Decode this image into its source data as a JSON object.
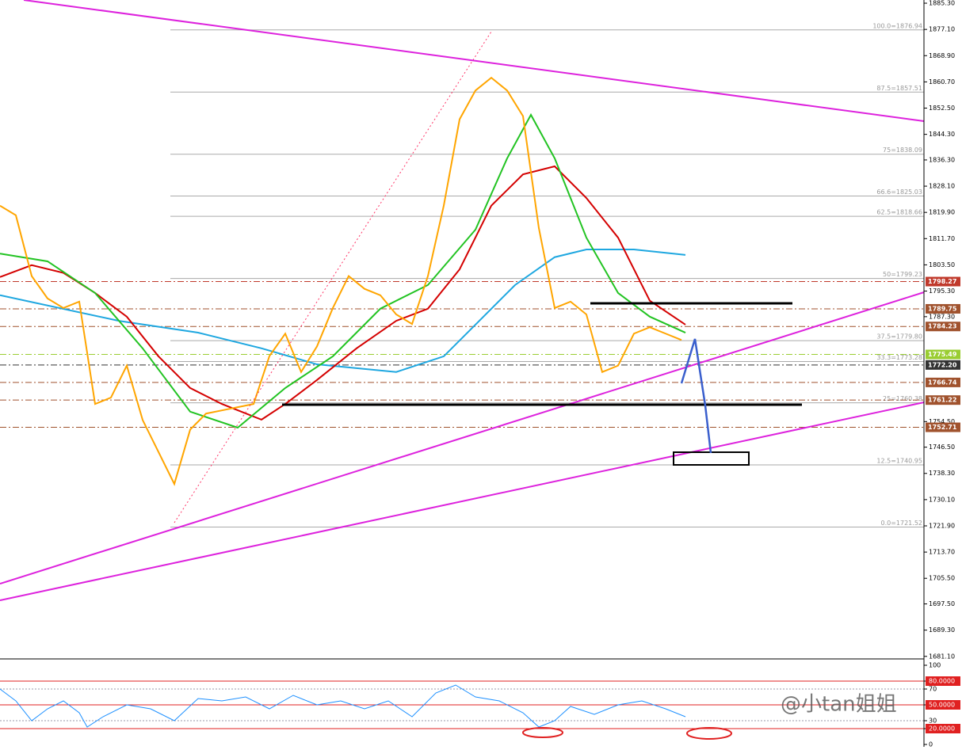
{
  "chart_data": [
    {
      "type": "line",
      "xlim": [
        0,
        1166
      ],
      "ylim": [
        1680.3,
        1886.3
      ],
      "yticks": [
        {
          "value": 1885.3,
          "label": "1885.30"
        },
        {
          "value": 1877.1,
          "label": "1877.10"
        },
        {
          "value": 1868.9,
          "label": "1868.90"
        },
        {
          "value": 1860.7,
          "label": "1860.70"
        },
        {
          "value": 1852.5,
          "label": "1852.50"
        },
        {
          "value": 1844.3,
          "label": "1844.30"
        },
        {
          "value": 1836.3,
          "label": "1836.30"
        },
        {
          "value": 1828.1,
          "label": "1828.10"
        },
        {
          "value": 1819.9,
          "label": "1819.90"
        },
        {
          "value": 1811.7,
          "label": "1811.70"
        },
        {
          "value": 1803.5,
          "label": "1803.50"
        },
        {
          "value": 1795.3,
          "label": "1795.30"
        },
        {
          "value": 1787.3,
          "label": "1787.30"
        },
        {
          "value": 1754.5,
          "label": "1754.50"
        },
        {
          "value": 1746.5,
          "label": "1746.50"
        },
        {
          "value": 1738.3,
          "label": "1738.30"
        },
        {
          "value": 1730.1,
          "label": "1730.10"
        },
        {
          "value": 1721.9,
          "label": "1721.90"
        },
        {
          "value": 1713.7,
          "label": "1713.70"
        },
        {
          "value": 1705.5,
          "label": "1705.50"
        },
        {
          "value": 1697.5,
          "label": "1697.50"
        },
        {
          "value": 1689.3,
          "label": "1689.30"
        },
        {
          "value": 1681.1,
          "label": "1681.10"
        }
      ],
      "fib_levels": [
        {
          "value": 1876.94,
          "label": "100.0=1876.94"
        },
        {
          "value": 1857.51,
          "label": "87.5=1857.51"
        },
        {
          "value": 1838.09,
          "label": "75=1838.09"
        },
        {
          "value": 1825.03,
          "label": "66.6=1825.03"
        },
        {
          "value": 1818.66,
          "label": "62.5=1818.66"
        },
        {
          "value": 1799.23,
          "label": "50=1799.23"
        },
        {
          "value": 1779.8,
          "label": "37.5=1779.80"
        },
        {
          "value": 1773.28,
          "label": "33.3=1773.28"
        },
        {
          "value": 1760.38,
          "label": "25=1760.38"
        },
        {
          "value": 1740.95,
          "label": "12.5=1740.95"
        },
        {
          "value": 1721.52,
          "label": "0.0=1721.52"
        }
      ],
      "price_tags": [
        {
          "value": 1798.27,
          "label": "1798.27",
          "color": "#c0392b"
        },
        {
          "value": 1789.75,
          "label": "1789.75",
          "color": "#a0522d"
        },
        {
          "value": 1784.23,
          "label": "1784.23",
          "color": "#a0522d"
        },
        {
          "value": 1775.49,
          "label": "1775.49",
          "color": "#9acd32"
        },
        {
          "value": 1772.2,
          "label": "1772.20",
          "color": "#333333"
        },
        {
          "value": 1766.74,
          "label": "1766.74",
          "color": "#a0522d"
        },
        {
          "value": 1761.22,
          "label": "1761.22",
          "color": "#a0522d"
        },
        {
          "value": 1752.71,
          "label": "1752.71",
          "color": "#a0522d"
        }
      ],
      "series": [
        {
          "color": "#1ea7e0",
          "x": [
            0,
            150,
            250,
            330,
            400,
            500,
            560,
            600,
            650,
            700,
            740,
            800,
            865
          ],
          "values": [
            1794,
            1786,
            1782.3,
            1777.4,
            1772.4,
            1770,
            1774.9,
            1784.8,
            1797.2,
            1805.9,
            1808.3,
            1808.3,
            1806.6
          ]
        },
        {
          "color": "#d40000",
          "x": [
            0,
            40,
            80,
            120,
            160,
            200,
            240,
            280,
            330,
            360,
            400,
            450,
            500,
            540,
            580,
            620,
            660,
            700,
            740,
            780,
            820,
            865
          ],
          "values": [
            1799.7,
            1803.4,
            1801,
            1794.7,
            1787.3,
            1774.9,
            1765,
            1760,
            1755.1,
            1760,
            1767.5,
            1777.4,
            1786,
            1789.8,
            1802.1,
            1822,
            1831.8,
            1834.3,
            1824.4,
            1812,
            1792.3,
            1784.8
          ]
        },
        {
          "color": "#22c322",
          "x": [
            0,
            60,
            120,
            180,
            240,
            300,
            360,
            420,
            480,
            540,
            600,
            640,
            670,
            700,
            740,
            780,
            820,
            865
          ],
          "values": [
            1807,
            1804.6,
            1794.7,
            1777.4,
            1757.6,
            1752.6,
            1765,
            1774.9,
            1789.8,
            1797.2,
            1814.5,
            1836.8,
            1850.4,
            1836.8,
            1812,
            1794.7,
            1787.3,
            1782.3
          ]
        },
        {
          "color": "#ffa500",
          "x": [
            0,
            20,
            40,
            60,
            80,
            100,
            120,
            140,
            160,
            180,
            200,
            220,
            240,
            260,
            280,
            300,
            320,
            340,
            360,
            380,
            400,
            420,
            440,
            460,
            480,
            500,
            520,
            540,
            560,
            580,
            600,
            620,
            640,
            660,
            680,
            700,
            720,
            740,
            760,
            780,
            800,
            820,
            840,
            860
          ],
          "values": [
            1822,
            1819,
            1800,
            1793,
            1790,
            1792,
            1760,
            1762,
            1772,
            1755,
            1745,
            1735,
            1752,
            1757,
            1758,
            1759,
            1760,
            1775,
            1782,
            1770,
            1778,
            1790,
            1800,
            1796,
            1794,
            1788,
            1785,
            1800,
            1822,
            1849,
            1858,
            1862,
            1858,
            1850,
            1815,
            1790,
            1792,
            1788,
            1770,
            1772,
            1782,
            1784,
            1782,
            1780
          ]
        }
      ]
    },
    {
      "type": "line",
      "xlim": [
        0,
        1166
      ],
      "ylim": [
        0,
        100
      ],
      "yticks": [
        100,
        {
          "value": 80,
          "label": "80.0000"
        },
        70,
        {
          "value": 50,
          "label": "50.0000"
        },
        30,
        {
          "value": 20,
          "label": "20.0000"
        },
        0
      ],
      "levels": [
        80,
        50,
        20
      ],
      "series": [
        {
          "color": "#1e90ff",
          "x": [
            0,
            20,
            40,
            60,
            80,
            100,
            110,
            130,
            160,
            190,
            220,
            250,
            280,
            310,
            340,
            370,
            400,
            430,
            460,
            490,
            520,
            550,
            575,
            600,
            630,
            660,
            680,
            700,
            720,
            750,
            780,
            810,
            840,
            865
          ],
          "values": [
            70,
            55,
            30,
            45,
            55,
            40,
            22,
            35,
            50,
            45,
            30,
            58,
            55,
            60,
            45,
            62,
            50,
            55,
            45,
            55,
            35,
            65,
            75,
            60,
            55,
            40,
            22,
            30,
            48,
            38,
            50,
            55,
            45,
            35
          ]
        }
      ]
    }
  ],
  "watermark": "@小tan姐姐"
}
